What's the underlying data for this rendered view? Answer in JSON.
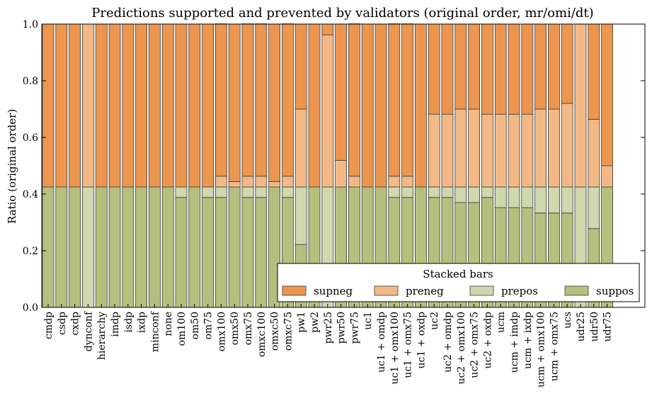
{
  "chart_data": {
    "type": "bar",
    "stacked": true,
    "title": "Predictions supported and prevented by validators (original order, mr/omi/dt)",
    "xlabel": "",
    "ylabel": "Ratio (original order)",
    "ylim": [
      0,
      1
    ],
    "yticks": [
      "0.0",
      "0.2",
      "0.4",
      "0.6",
      "0.8",
      "1.0"
    ],
    "legend": {
      "title": "Stacked bars",
      "placement": "bottom-right"
    },
    "colors": {
      "suppos": "#b5c07e",
      "prepos": "#cfd8ae",
      "preneg": "#f2b987",
      "supneg": "#ec9650",
      "edge": "#3a3a3a"
    },
    "categories": [
      "cmdp",
      "csdp",
      "cxdp",
      "dynconf",
      "hierarchy",
      "imdp",
      "isdp",
      "ixdp",
      "minconf",
      "none",
      "om100",
      "om50",
      "om75",
      "omx100",
      "omx50",
      "omx75",
      "omxc100",
      "omxc50",
      "omxc75",
      "pw1",
      "pw2",
      "pwr25",
      "pwr50",
      "pwr75",
      "uc1",
      "uc1 + omdp",
      "uc1 + omx100",
      "uc1 + omx75",
      "uc1 + oxdp",
      "uc2",
      "uc2 + omdp",
      "uc2 + omx100",
      "uc2 + omx75",
      "uc2 + oxdp",
      "ucm",
      "ucm + imdp",
      "ucm + ixdp",
      "ucm + omx100",
      "ucm + omx75",
      "ucs",
      "udr25",
      "udr50",
      "udr75"
    ],
    "series": [
      {
        "name": "supneg",
        "values": [
          0.575,
          0.575,
          0.575,
          0.0,
          0.575,
          0.575,
          0.575,
          0.575,
          0.575,
          0.575,
          0.575,
          0.575,
          0.575,
          0.538,
          0.556,
          0.538,
          0.538,
          0.556,
          0.538,
          0.3,
          0.575,
          0.038,
          0.481,
          0.538,
          0.575,
          0.575,
          0.538,
          0.538,
          0.575,
          0.318,
          0.318,
          0.3,
          0.3,
          0.318,
          0.318,
          0.318,
          0.318,
          0.3,
          0.3,
          0.28,
          0.0,
          0.336,
          0.5
        ]
      },
      {
        "name": "preneg",
        "values": [
          0.0,
          0.0,
          0.0,
          0.575,
          0.0,
          0.0,
          0.0,
          0.0,
          0.0,
          0.0,
          0.0,
          0.0,
          0.0,
          0.038,
          0.019,
          0.038,
          0.038,
          0.019,
          0.038,
          0.275,
          0.0,
          0.537,
          0.094,
          0.038,
          0.0,
          0.0,
          0.038,
          0.038,
          0.0,
          0.257,
          0.257,
          0.275,
          0.275,
          0.257,
          0.257,
          0.257,
          0.257,
          0.275,
          0.275,
          0.295,
          0.575,
          0.239,
          0.075
        ]
      },
      {
        "name": "prepos",
        "values": [
          0.0,
          0.0,
          0.0,
          0.425,
          0.0,
          0.0,
          0.0,
          0.0,
          0.0,
          0.0,
          0.037,
          0.0,
          0.037,
          0.037,
          0.0,
          0.037,
          0.037,
          0.0,
          0.037,
          0.203,
          0.0,
          0.425,
          0.0,
          0.0,
          0.0,
          0.0,
          0.037,
          0.037,
          0.0,
          0.037,
          0.037,
          0.055,
          0.055,
          0.037,
          0.073,
          0.073,
          0.073,
          0.092,
          0.092,
          0.092,
          0.425,
          0.147,
          0.0
        ]
      },
      {
        "name": "suppos",
        "values": [
          0.425,
          0.425,
          0.425,
          0.0,
          0.425,
          0.425,
          0.425,
          0.425,
          0.425,
          0.425,
          0.388,
          0.425,
          0.388,
          0.388,
          0.425,
          0.388,
          0.388,
          0.425,
          0.388,
          0.222,
          0.425,
          0.0,
          0.425,
          0.425,
          0.425,
          0.425,
          0.388,
          0.388,
          0.425,
          0.388,
          0.388,
          0.37,
          0.37,
          0.388,
          0.352,
          0.352,
          0.352,
          0.333,
          0.333,
          0.333,
          0.0,
          0.278,
          0.425
        ]
      }
    ]
  }
}
